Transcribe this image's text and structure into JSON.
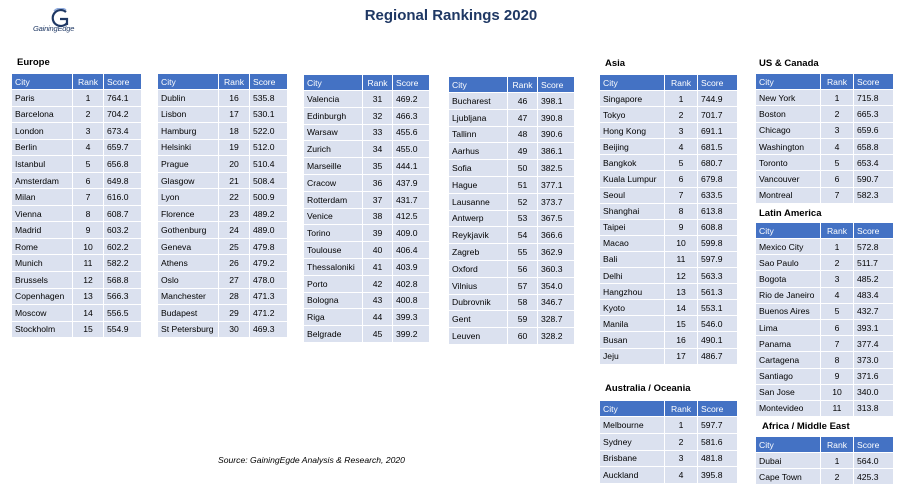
{
  "title": "Regional Rankings 2020",
  "logo_text": "GainingEdge",
  "source": "Source: GainingEgde Analysis & Research, 2020",
  "headers": {
    "city": "City",
    "rank": "Rank",
    "score": "Score"
  },
  "europe": {
    "label": "Europe",
    "col1": [
      [
        "Paris",
        "1",
        "764.1"
      ],
      [
        "Barcelona",
        "2",
        "704.2"
      ],
      [
        "London",
        "3",
        "673.4"
      ],
      [
        "Berlin",
        "4",
        "659.7"
      ],
      [
        "Istanbul",
        "5",
        "656.8"
      ],
      [
        "Amsterdam",
        "6",
        "649.8"
      ],
      [
        "Milan",
        "7",
        "616.0"
      ],
      [
        "Vienna",
        "8",
        "608.7"
      ],
      [
        "Madrid",
        "9",
        "603.2"
      ],
      [
        "Rome",
        "10",
        "602.2"
      ],
      [
        "Munich",
        "11",
        "582.2"
      ],
      [
        "Brussels",
        "12",
        "568.8"
      ],
      [
        "Copenhagen",
        "13",
        "566.3"
      ],
      [
        "Moscow",
        "14",
        "556.5"
      ],
      [
        "Stockholm",
        "15",
        "554.9"
      ]
    ],
    "col2": [
      [
        "Dublin",
        "16",
        "535.8"
      ],
      [
        "Lisbon",
        "17",
        "530.1"
      ],
      [
        "Hamburg",
        "18",
        "522.0"
      ],
      [
        "Helsinki",
        "19",
        "512.0"
      ],
      [
        "Prague",
        "20",
        "510.4"
      ],
      [
        "Glasgow",
        "21",
        "508.4"
      ],
      [
        "Lyon",
        "22",
        "500.9"
      ],
      [
        "Florence",
        "23",
        "489.2"
      ],
      [
        "Gothenburg",
        "24",
        "489.0"
      ],
      [
        "Geneva",
        "25",
        "479.8"
      ],
      [
        "Athens",
        "26",
        "479.2"
      ],
      [
        "Oslo",
        "27",
        "478.0"
      ],
      [
        "Manchester",
        "28",
        "471.3"
      ],
      [
        "Budapest",
        "29",
        "471.2"
      ],
      [
        "St Petersburg",
        "30",
        "469.3"
      ]
    ],
    "col3": [
      [
        "Valencia",
        "31",
        "469.2"
      ],
      [
        "Edinburgh",
        "32",
        "466.3"
      ],
      [
        "Warsaw",
        "33",
        "455.6"
      ],
      [
        "Zurich",
        "34",
        "455.0"
      ],
      [
        "Marseille",
        "35",
        "444.1"
      ],
      [
        "Cracow",
        "36",
        "437.9"
      ],
      [
        "Rotterdam",
        "37",
        "431.7"
      ],
      [
        "Venice",
        "38",
        "412.5"
      ],
      [
        "Torino",
        "39",
        "409.0"
      ],
      [
        "Toulouse",
        "40",
        "406.4"
      ],
      [
        "Thessaloniki",
        "41",
        "403.9"
      ],
      [
        "Porto",
        "42",
        "402.8"
      ],
      [
        "Bologna",
        "43",
        "400.8"
      ],
      [
        "Riga",
        "44",
        "399.3"
      ],
      [
        "Belgrade",
        "45",
        "399.2"
      ]
    ],
    "col4": [
      [
        "Bucharest",
        "46",
        "398.1"
      ],
      [
        "Ljubljana",
        "47",
        "390.8"
      ],
      [
        "Tallinn",
        "48",
        "390.6"
      ],
      [
        "Aarhus",
        "49",
        "386.1"
      ],
      [
        "Sofia",
        "50",
        "382.5"
      ],
      [
        "Hague",
        "51",
        "377.1"
      ],
      [
        "Lausanne",
        "52",
        "373.7"
      ],
      [
        "Antwerp",
        "53",
        "367.5"
      ],
      [
        "Reykjavik",
        "54",
        "366.6"
      ],
      [
        "Zagreb",
        "55",
        "362.9"
      ],
      [
        "Oxford",
        "56",
        "360.3"
      ],
      [
        "Vilnius",
        "57",
        "354.0"
      ],
      [
        "Dubrovnik",
        "58",
        "346.7"
      ],
      [
        "Gent",
        "59",
        "328.7"
      ],
      [
        "Leuven",
        "60",
        "328.2"
      ]
    ]
  },
  "asia": {
    "label": "Asia",
    "rows": [
      [
        "Singapore",
        "1",
        "744.9"
      ],
      [
        "Tokyo",
        "2",
        "701.7"
      ],
      [
        "Hong Kong",
        "3",
        "691.1"
      ],
      [
        "Beijing",
        "4",
        "681.5"
      ],
      [
        "Bangkok",
        "5",
        "680.7"
      ],
      [
        "Kuala Lumpur",
        "6",
        "679.8"
      ],
      [
        "Seoul",
        "7",
        "633.5"
      ],
      [
        "Shanghai",
        "8",
        "613.8"
      ],
      [
        "Taipei",
        "9",
        "608.8"
      ],
      [
        "Macao",
        "10",
        "599.8"
      ],
      [
        "Bali",
        "11",
        "597.9"
      ],
      [
        "Delhi",
        "12",
        "563.3"
      ],
      [
        "Hangzhou",
        "13",
        "561.3"
      ],
      [
        "Kyoto",
        "14",
        "553.1"
      ],
      [
        "Manila",
        "15",
        "546.0"
      ],
      [
        "Busan",
        "16",
        "490.1"
      ],
      [
        "Jeju",
        "17",
        "486.7"
      ]
    ]
  },
  "australia": {
    "label": "Australia / Oceania",
    "rows": [
      [
        "Melbourne",
        "1",
        "597.7"
      ],
      [
        "Sydney",
        "2",
        "581.6"
      ],
      [
        "Brisbane",
        "3",
        "481.8"
      ],
      [
        "Auckland",
        "4",
        "395.8"
      ]
    ]
  },
  "us_canada": {
    "label": "US & Canada",
    "rows": [
      [
        "New York",
        "1",
        "715.8"
      ],
      [
        "Boston",
        "2",
        "665.3"
      ],
      [
        "Chicago",
        "3",
        "659.6"
      ],
      [
        "Washington",
        "4",
        "658.8"
      ],
      [
        "Toronto",
        "5",
        "653.4"
      ],
      [
        "Vancouver",
        "6",
        "590.7"
      ],
      [
        "Montreal",
        "7",
        "582.3"
      ]
    ]
  },
  "latin_america": {
    "label": "Latin America",
    "rows": [
      [
        "Mexico City",
        "1",
        "572.8"
      ],
      [
        "Sao Paulo",
        "2",
        "511.7"
      ],
      [
        "Bogota",
        "3",
        "485.2"
      ],
      [
        "Rio de Janeiro",
        "4",
        "483.4"
      ],
      [
        "Buenos Aires",
        "5",
        "432.7"
      ],
      [
        "Lima",
        "6",
        "393.1"
      ],
      [
        "Panama",
        "7",
        "377.4"
      ],
      [
        "Cartagena",
        "8",
        "373.0"
      ],
      [
        "Santiago",
        "9",
        "371.6"
      ],
      [
        "San Jose",
        "10",
        "340.0"
      ],
      [
        "Montevideo",
        "11",
        "313.8"
      ]
    ]
  },
  "africa_me": {
    "label": "Africa / Middle East",
    "rows": [
      [
        "Dubai",
        "1",
        "564.0"
      ],
      [
        "Cape Town",
        "2",
        "425.3"
      ]
    ]
  }
}
